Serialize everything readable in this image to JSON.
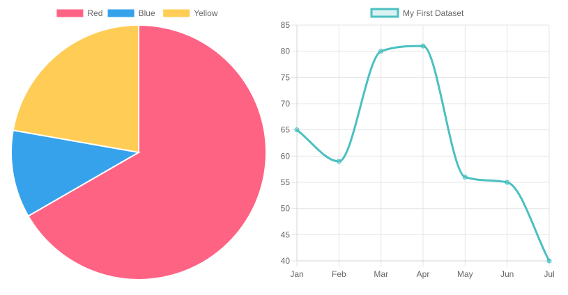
{
  "chart_data": [
    {
      "type": "pie",
      "labels": [
        "Red",
        "Blue",
        "Yellow"
      ],
      "values": [
        300,
        50,
        100
      ],
      "colors": [
        "#ff6384",
        "#36a2eb",
        "#ffcd56"
      ],
      "legend_position": "top"
    },
    {
      "type": "line",
      "categories": [
        "Jan",
        "Feb",
        "Mar",
        "Apr",
        "May",
        "Jun",
        "Jul"
      ],
      "series": [
        {
          "name": "My First Dataset",
          "values": [
            65,
            59,
            80,
            81,
            56,
            55,
            40
          ],
          "color": "#4bc0c0"
        }
      ],
      "ylim": [
        40,
        85
      ],
      "yticks": [
        40,
        45,
        50,
        55,
        60,
        65,
        70,
        75,
        80,
        85
      ],
      "grid": true,
      "legend_position": "top"
    }
  ]
}
